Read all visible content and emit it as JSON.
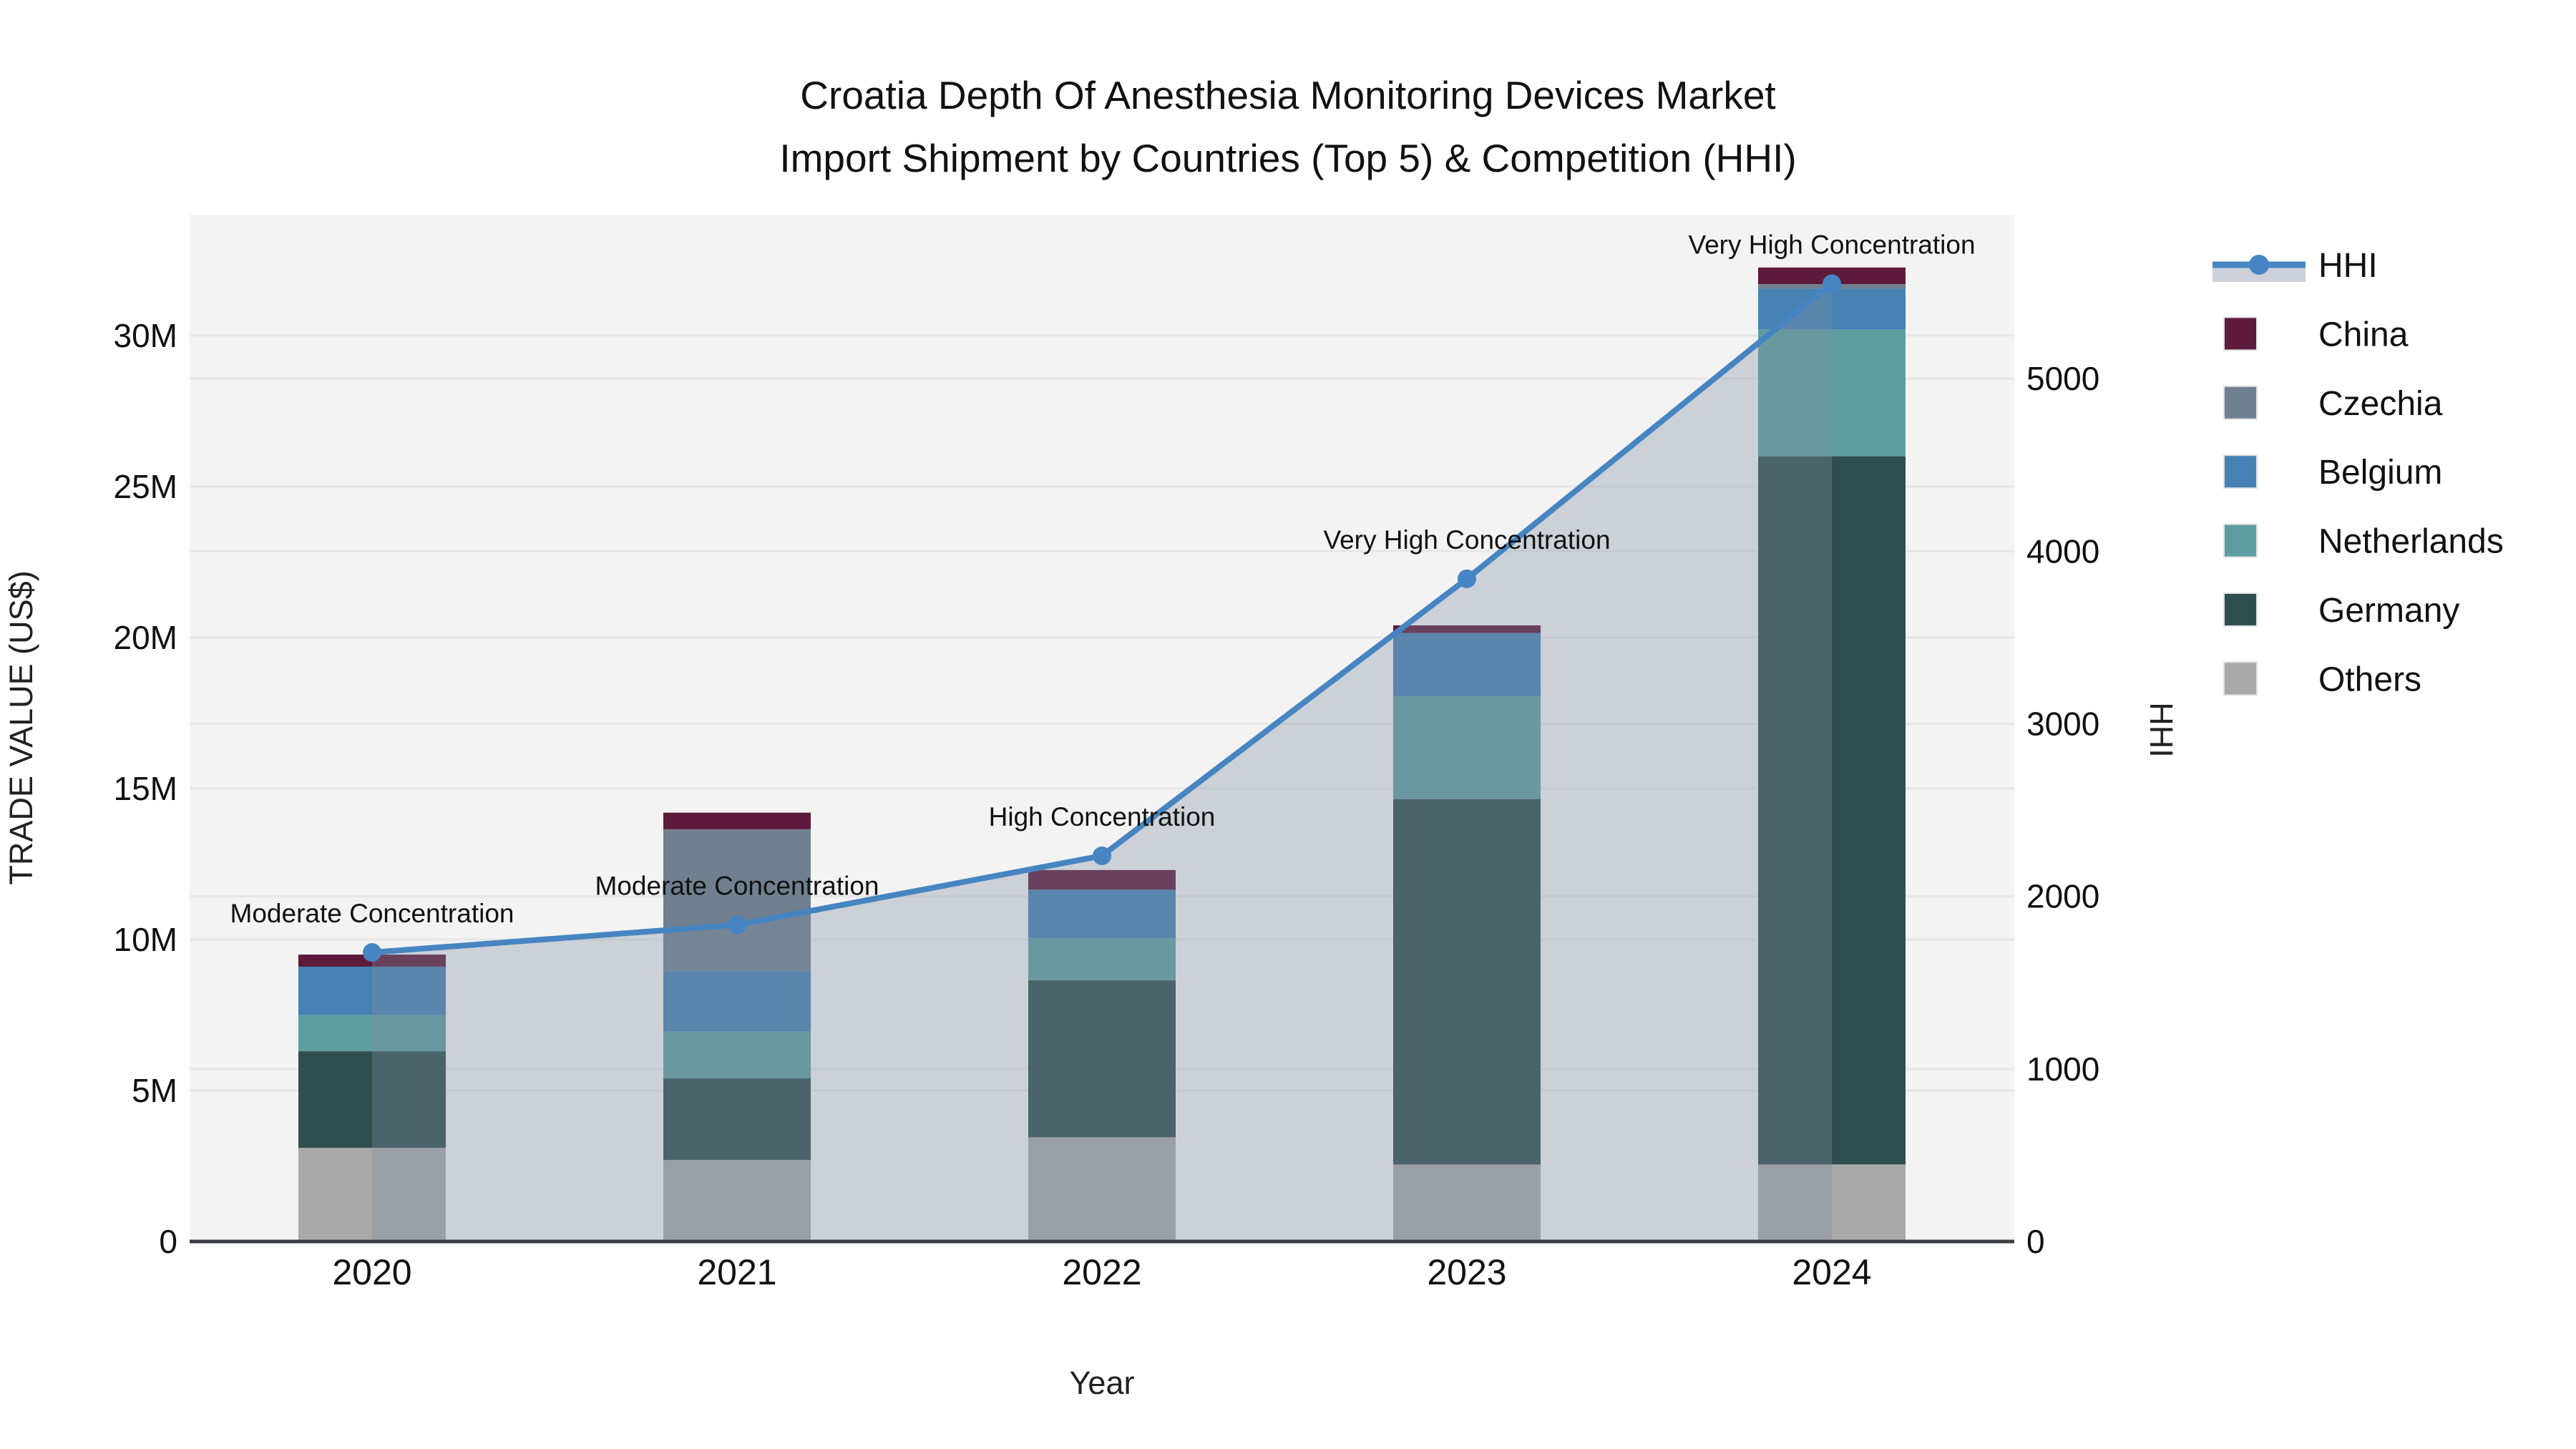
{
  "title": {
    "line1": "Croatia Depth Of Anesthesia Monitoring Devices Market",
    "line2": "Import Shipment by Countries (Top 5) & Competition (HHI)"
  },
  "axes": {
    "left": {
      "title": "TRADE VALUE (US$)",
      "ticks": [
        {
          "label": "0",
          "value": 0
        },
        {
          "label": "5M",
          "value": 5
        },
        {
          "label": "10M",
          "value": 10
        },
        {
          "label": "15M",
          "value": 15
        },
        {
          "label": "20M",
          "value": 20
        },
        {
          "label": "25M",
          "value": 25
        },
        {
          "label": "30M",
          "value": 30
        }
      ]
    },
    "right": {
      "title": "HHI",
      "ticks": [
        {
          "label": "0",
          "value": 0
        },
        {
          "label": "1000",
          "value": 1000
        },
        {
          "label": "2000",
          "value": 2000
        },
        {
          "label": "3000",
          "value": 3000
        },
        {
          "label": "4000",
          "value": 4000
        },
        {
          "label": "5000",
          "value": 5000
        }
      ]
    },
    "x": {
      "title": "Year"
    }
  },
  "chart_data": {
    "type": "combo-stacked-bar-plus-line-area",
    "categories": [
      "2020",
      "2021",
      "2022",
      "2023",
      "2024"
    ],
    "unit_left": "M US$ (values in millions)",
    "series": [
      {
        "name": "Others",
        "color": "#a9a9a9",
        "values": [
          3.1,
          2.7,
          3.45,
          2.55,
          2.55
        ]
      },
      {
        "name": "Germany",
        "color": "#2f4f4f",
        "values": [
          3.2,
          2.7,
          5.2,
          12.1,
          23.45
        ]
      },
      {
        "name": "Netherlands",
        "color": "#5f9ea0",
        "values": [
          1.2,
          1.55,
          1.4,
          3.4,
          4.2
        ]
      },
      {
        "name": "Belgium",
        "color": "#4682b4",
        "values": [
          1.6,
          2.0,
          1.6,
          2.1,
          1.35
        ]
      },
      {
        "name": "Czechia",
        "color": "#708090",
        "values": [
          0.0,
          4.7,
          0.0,
          0.0,
          0.15
        ]
      },
      {
        "name": "China",
        "color": "#5d1a3b",
        "values": [
          0.4,
          0.55,
          0.65,
          0.25,
          0.55
        ]
      }
    ],
    "line_series": {
      "name": "HHI",
      "axis": "right",
      "color": "#4685c1",
      "area_color": "rgba(128,140,160,0.34)",
      "values": [
        1675,
        1835,
        2235,
        3840,
        5550
      ]
    },
    "annotations": [
      {
        "text": "Moderate Concentration",
        "year": "2020"
      },
      {
        "text": "Moderate Concentration",
        "year": "2021"
      },
      {
        "text": "High Concentration",
        "year": "2022"
      },
      {
        "text": "Very High Concentration",
        "year": "2023"
      },
      {
        "text": "Very High Concentration",
        "year": "2024"
      }
    ],
    "ylim_left": [
      0,
      34
    ],
    "ylim_right": [
      0,
      5950
    ],
    "grid": true,
    "legend_position": "right"
  },
  "legend": {
    "items": [
      {
        "label": "HHI",
        "type": "line",
        "color": "#4685c1"
      },
      {
        "label": "China",
        "type": "swatch",
        "color": "#5d1a3b"
      },
      {
        "label": "Czechia",
        "type": "swatch",
        "color": "#708090"
      },
      {
        "label": "Belgium",
        "type": "swatch",
        "color": "#4682b4"
      },
      {
        "label": "Netherlands",
        "type": "swatch",
        "color": "#5f9ea0"
      },
      {
        "label": "Germany",
        "type": "swatch",
        "color": "#2f4f4f"
      },
      {
        "label": "Others",
        "type": "swatch",
        "color": "#a9a9a9"
      }
    ]
  },
  "colors": {
    "plot_bg": "#f3f3f3",
    "grid": "#e7e7e7",
    "axis_line": "#3a3d42",
    "text": "#111111",
    "legend_area_band": "rgba(128,140,160,0.40)"
  }
}
